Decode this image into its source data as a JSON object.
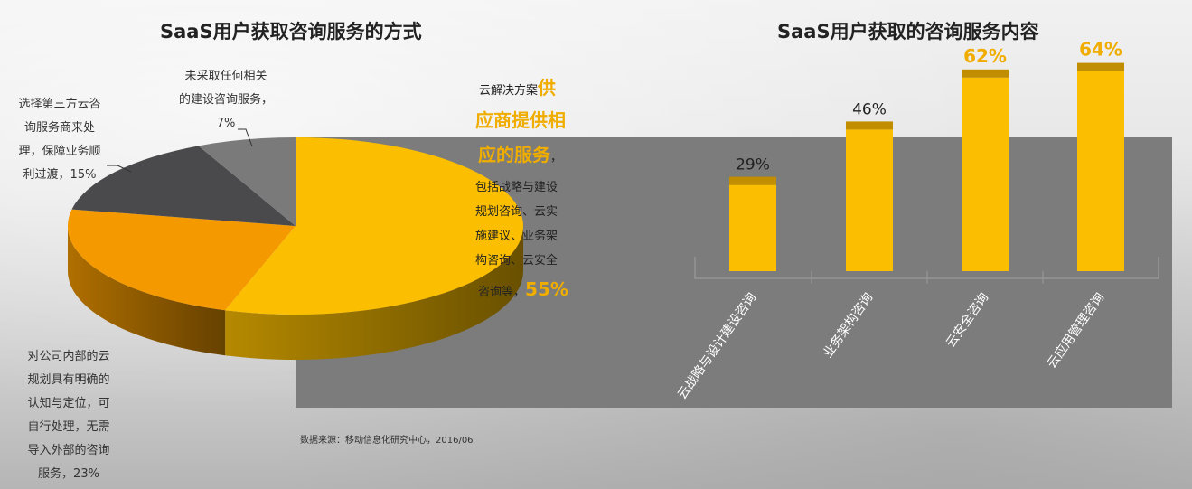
{
  "left_title": "SaaS用户获取咨询服务的方式",
  "right_title": "SaaS用户获取的咨询服务内容",
  "source": "数据来源：移动信息化研究中心，2016/06",
  "pie_labels": {
    "none": [
      "未采取任何相关",
      "的建设咨询服务，",
      "7%"
    ],
    "third_party": [
      "选择第三方云咨",
      "询服务商来处",
      "理，保障业务顺",
      "利过渡，15%"
    ],
    "internal": [
      "对公司内部的云",
      "规划具有明确的",
      "认知与定位，可",
      "自行处理，无需",
      "导入外部的咨询",
      "服务，23%"
    ],
    "vendor_line1": "云解决方案",
    "vendor_hl1": "供",
    "vendor_hl2": "应商提供相",
    "vendor_hl3": "应的服务",
    "vendor_hl3_punct": "，",
    "vendor_lines": [
      "包括战略与建设",
      "规划咨询、云实",
      "施建议、业务架",
      "构咨询、云安全"
    ],
    "vendor_last": "咨询等，",
    "vendor_pct": "55%"
  },
  "colors": {
    "vendor": "#fbbe00",
    "internal": "#f49a00",
    "third_party": "#4a4a4c",
    "none": "#7a7a7a",
    "bar": "#fbbe00",
    "bar_cap": "#c08e00",
    "bar_label_highlight": "#f0ad00"
  },
  "chart_data": [
    {
      "type": "pie",
      "title": "SaaS用户获取咨询服务的方式",
      "slices": [
        {
          "label": "云解决方案供应商提供相应的服务",
          "value": 55
        },
        {
          "label": "对公司内部的云规划具有明确的认知与定位，可自行处理，无需导入外部的咨询服务",
          "value": 23
        },
        {
          "label": "选择第三方云咨询服务商来处理，保障业务顺利过渡",
          "value": 15
        },
        {
          "label": "未采取任何相关的建设咨询服务",
          "value": 7
        }
      ]
    },
    {
      "type": "bar",
      "title": "SaaS用户获取的咨询服务内容",
      "categories": [
        "云战略与设计建设咨询",
        "业务架构咨询",
        "云安全咨询",
        "云应用管理咨询"
      ],
      "values": [
        29,
        46,
        62,
        64
      ],
      "value_labels": [
        "29%",
        "46%",
        "62%",
        "64%"
      ],
      "ylim": [
        0,
        70
      ],
      "grid": false
    }
  ]
}
